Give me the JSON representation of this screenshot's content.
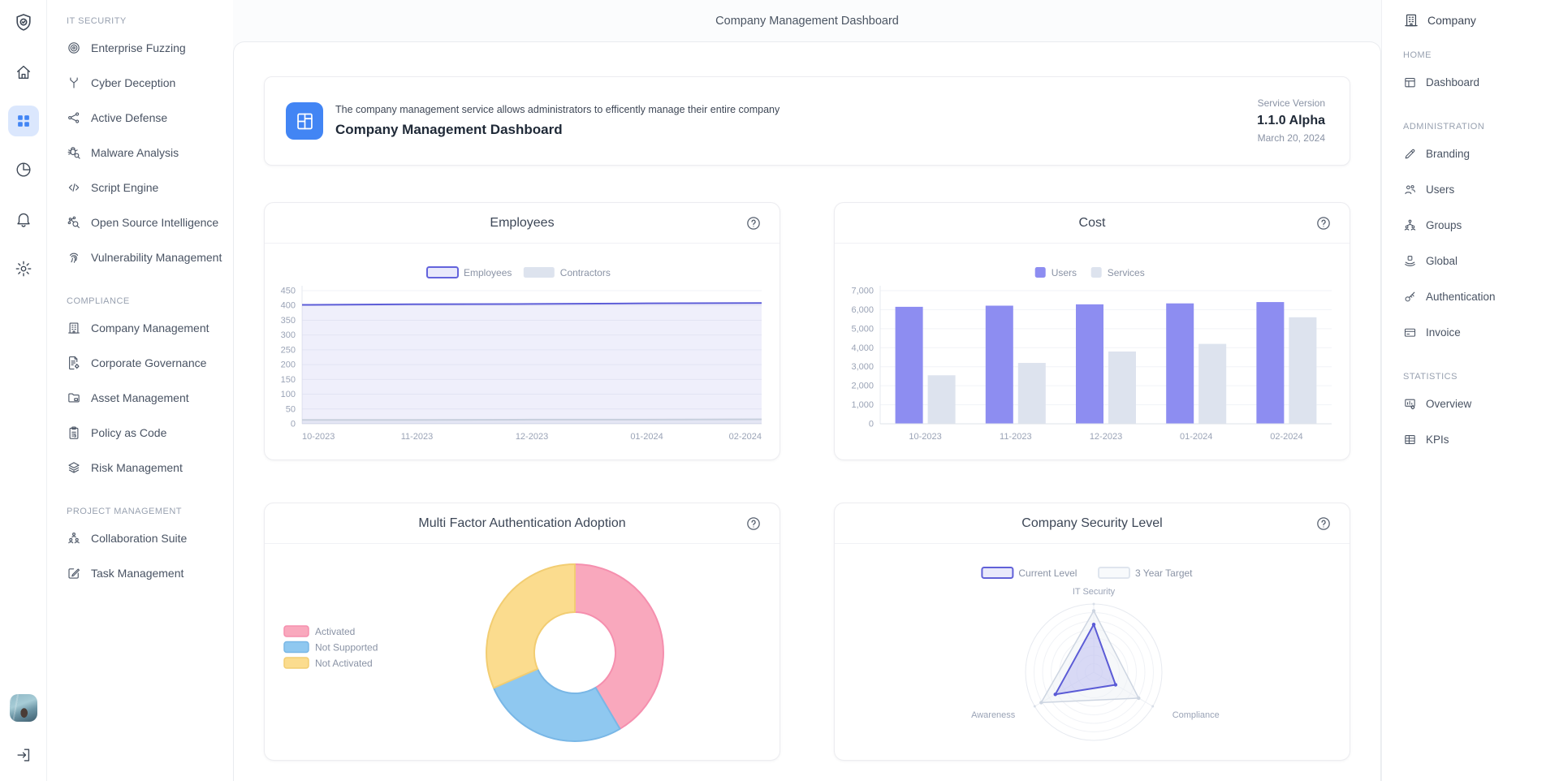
{
  "header": {
    "title": "Company Management Dashboard"
  },
  "left_rail": {
    "top": [
      {
        "name": "logo-shield-icon"
      },
      {
        "name": "home-icon"
      },
      {
        "name": "dashboard-grid-icon",
        "active": true
      },
      {
        "name": "pie-chart-icon"
      },
      {
        "name": "bell-icon"
      },
      {
        "name": "gear-icon"
      }
    ],
    "bottom": [
      {
        "name": "user-avatar"
      },
      {
        "name": "logout-icon"
      }
    ]
  },
  "sidebar": {
    "sections": [
      {
        "label": "IT SECURITY",
        "items": [
          {
            "label": "Enterprise Fuzzing",
            "icon": "target-icon"
          },
          {
            "label": "Cyber Deception",
            "icon": "branch-icon"
          },
          {
            "label": "Active Defense",
            "icon": "share-nodes-icon"
          },
          {
            "label": "Malware Analysis",
            "icon": "bug-search-icon"
          },
          {
            "label": "Script Engine",
            "icon": "code-icon"
          },
          {
            "label": "Open Source Intelligence",
            "icon": "network-search-icon"
          },
          {
            "label": "Vulnerability Management",
            "icon": "fingerprint-icon"
          }
        ]
      },
      {
        "label": "COMPLIANCE",
        "items": [
          {
            "label": "Company Management",
            "icon": "building-icon"
          },
          {
            "label": "Corporate Governance",
            "icon": "document-gear-icon"
          },
          {
            "label": "Asset Management",
            "icon": "folder-icon"
          },
          {
            "label": "Policy as Code",
            "icon": "clipboard-icon"
          },
          {
            "label": "Risk Management",
            "icon": "layers-icon"
          }
        ]
      },
      {
        "label": "PROJECT MANAGEMENT",
        "items": [
          {
            "label": "Collaboration Suite",
            "icon": "people-group-icon"
          },
          {
            "label": "Task Management",
            "icon": "edit-square-icon"
          }
        ]
      }
    ]
  },
  "right_sidebar": {
    "company": {
      "label": "Company",
      "icon": "building-icon"
    },
    "sections": [
      {
        "label": "HOME",
        "items": [
          {
            "label": "Dashboard",
            "icon": "window-icon"
          }
        ]
      },
      {
        "label": "ADMINISTRATION",
        "items": [
          {
            "label": "Branding",
            "icon": "pen-icon"
          },
          {
            "label": "Users",
            "icon": "users-icon"
          },
          {
            "label": "Groups",
            "icon": "org-chart-icon"
          },
          {
            "label": "Global",
            "icon": "hands-box-icon"
          },
          {
            "label": "Authentication",
            "icon": "key-icon"
          },
          {
            "label": "Invoice",
            "icon": "credit-card-icon"
          }
        ]
      },
      {
        "label": "STATISTICS",
        "items": [
          {
            "label": "Overview",
            "icon": "chart-board-icon"
          },
          {
            "label": "KPIs",
            "icon": "table-icon"
          }
        ]
      }
    ]
  },
  "banner": {
    "description": "The company management service allows administrators to efficently manage their entire company",
    "title": "Company Management Dashboard",
    "service_version_label": "Service Version",
    "version": "1.1.0 Alpha",
    "date": "March 20, 2024",
    "accent_color": "#4285f4"
  },
  "chart_data": [
    {
      "id": "employees",
      "type": "area",
      "title": "Employees",
      "x": [
        "10-2023",
        "11-2023",
        "12-2023",
        "01-2024",
        "02-2024"
      ],
      "series": [
        {
          "name": "Employees",
          "values": [
            402,
            404,
            405,
            407,
            408
          ],
          "color": "#5e5ed8",
          "fill": "rgba(97,97,214,0.10)",
          "swatch_fill": "#e9e9fb",
          "swatch_stroke": "#6363dc"
        },
        {
          "name": "Contractors",
          "values": [
            13,
            13,
            14,
            14,
            15
          ],
          "color": "#c7cfdd",
          "fill": "rgba(150,165,195,0.12)",
          "swatch_fill": "#dde3ee",
          "swatch_stroke": ""
        }
      ],
      "ylim": [
        0,
        450
      ],
      "ytick": 50,
      "grid": true,
      "legend_position": "top"
    },
    {
      "id": "cost",
      "type": "bar",
      "title": "Cost",
      "x": [
        "10-2023",
        "11-2023",
        "12-2023",
        "01-2024",
        "02-2024"
      ],
      "series": [
        {
          "name": "Users",
          "values": [
            6150,
            6210,
            6280,
            6330,
            6400
          ],
          "color": "#8d8df1"
        },
        {
          "name": "Services",
          "values": [
            2550,
            3200,
            3800,
            4200,
            5600
          ],
          "color": "#dde3ee"
        }
      ],
      "ylim": [
        0,
        7000
      ],
      "ytick": 1000,
      "grid": true,
      "legend_position": "top"
    },
    {
      "id": "mfa-adoption",
      "type": "donut",
      "title": "Multi Factor Authentication Adoption",
      "slices": [
        {
          "label": "Activated",
          "pct": 41.5,
          "color": "#f9a8bd",
          "border": "#f58fae"
        },
        {
          "label": "Not Supported",
          "pct": 27,
          "color": "#8fc8f0",
          "border": "#79b7e6"
        },
        {
          "label": "Not Activated",
          "pct": 31.5,
          "color": "#fbdc8e",
          "border": "#f2cd72"
        }
      ],
      "legend_position": "left"
    },
    {
      "id": "security-level",
      "type": "radar",
      "title": "Company Security Level",
      "axes": [
        "IT Security",
        "Compliance",
        "Awareness"
      ],
      "max": 100,
      "series": [
        {
          "name": "Current Level",
          "values": [
            70,
            37,
            65
          ],
          "color": "#5b5bd6",
          "fill": "rgba(151,151,235,0.32)",
          "swatch_fill": "#e9e9fb",
          "swatch_stroke": "#6161d8"
        },
        {
          "name": "3 Year Target",
          "values": [
            90,
            76,
            89
          ],
          "color": "#cdd5e1",
          "fill": "rgba(238,241,246,0.50)",
          "swatch_fill": "#f8fafc",
          "swatch_stroke": "#dfe5ee"
        }
      ],
      "rings": 8,
      "legend_position": "top"
    }
  ]
}
